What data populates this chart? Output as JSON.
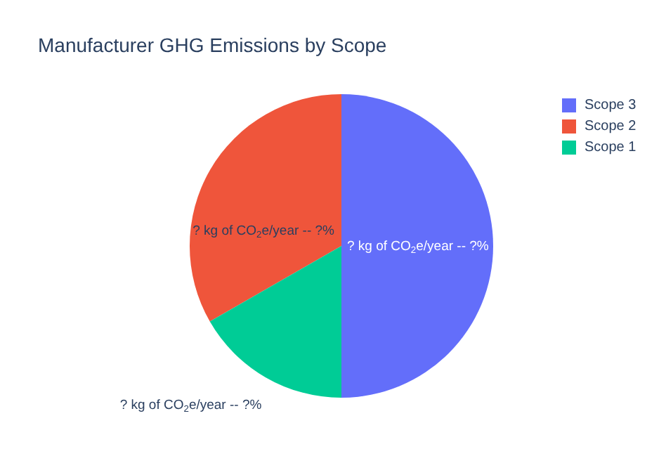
{
  "chart_data": {
    "type": "pie",
    "title": "Manufacturer GHG Emissions by Scope",
    "categories": [
      "Scope 3",
      "Scope 2",
      "Scope 1"
    ],
    "values": [
      50,
      33.3,
      16.7
    ],
    "colors": [
      "#636efa",
      "#ef553b",
      "#00cc96"
    ],
    "annotations": [
      "? kg of CO$_{2}$e/year -- ?%",
      "? kg of CO$_{2}$e/year -- ?%",
      "? kg of CO$_{2}$e/year -- ?%"
    ],
    "legend": "top right"
  }
}
